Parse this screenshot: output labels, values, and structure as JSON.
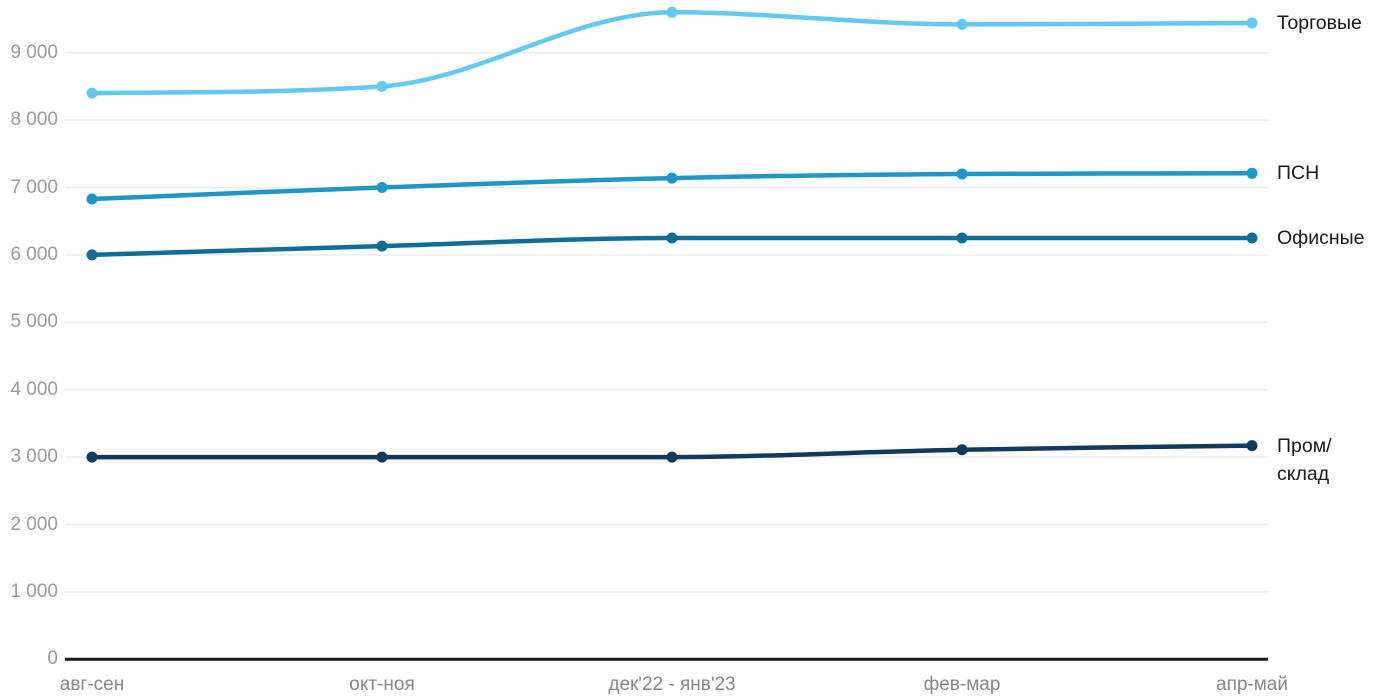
{
  "chart_data": {
    "type": "line",
    "title": "",
    "xlabel": "",
    "ylabel": "",
    "categories": [
      "авг-сен",
      "окт-ноя",
      "дек'22 - янв'23",
      "фев-мар",
      "апр-май"
    ],
    "series": [
      {
        "name": "Торговые",
        "color": "#61c9f2",
        "values": [
          8400,
          8500,
          9600,
          9420,
          9440
        ]
      },
      {
        "name": "ПСН",
        "color": "#1e96c8",
        "values": [
          6830,
          7000,
          7140,
          7200,
          7210
        ]
      },
      {
        "name": "Офисные",
        "color": "#0f6d96",
        "values": [
          6000,
          6130,
          6250,
          6250,
          6250
        ]
      },
      {
        "name": "Пром/склад",
        "color": "#123a5c",
        "values": [
          3000,
          3000,
          3000,
          3110,
          3170
        ]
      }
    ],
    "ytick_labels": [
      "9 000",
      "8 000",
      "7 000",
      "6 000",
      "5 000",
      "4 000",
      "3 000",
      "2 000",
      "1 000",
      "0"
    ],
    "ytick_values": [
      9000,
      8000,
      7000,
      6000,
      5000,
      4000,
      3000,
      2000,
      1000,
      0
    ],
    "ylim": [
      0,
      9700
    ],
    "grid": "horizontal",
    "legend_position": "right-of-line-end",
    "line_style": "smooth-monotone",
    "markers": "filled-circle",
    "colors": {
      "background": "#ffffff",
      "gridline": "#ececec",
      "axis_line": "#1a1a1a",
      "ytick_text": "#9b9b9b",
      "xtick_text": "#878787",
      "series_label_text": "#1a1a1a"
    }
  }
}
